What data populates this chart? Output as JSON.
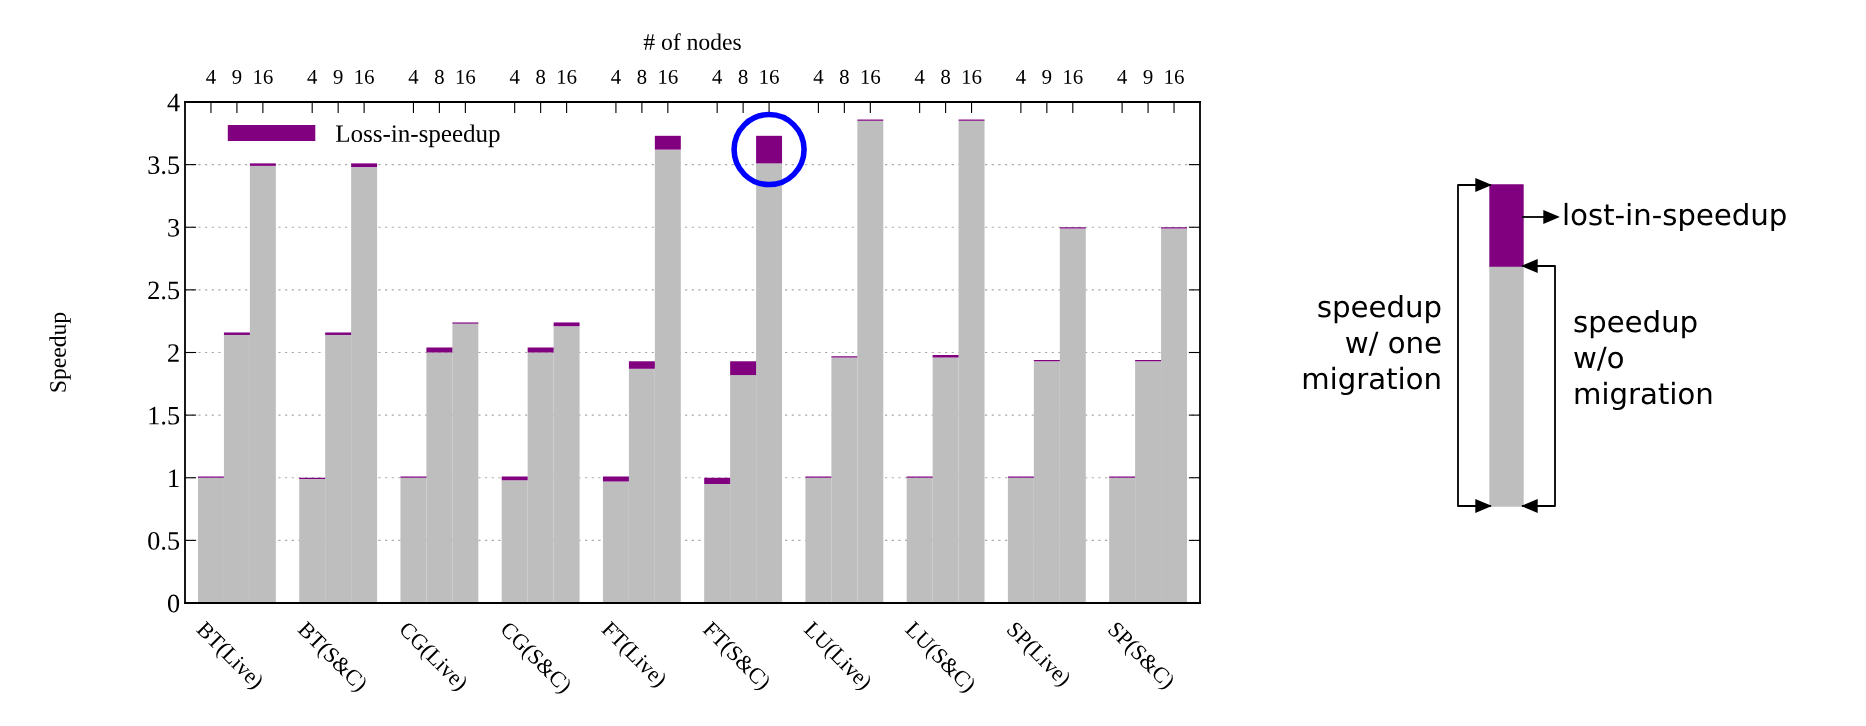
{
  "chart_data": {
    "type": "bar",
    "stacked": true,
    "xlabel": "# of nodes",
    "ylabel": "Speedup",
    "categories": [
      "4",
      "9",
      "16",
      "4",
      "9",
      "16",
      "4",
      "8",
      "16",
      "4",
      "8",
      "16",
      "4",
      "8",
      "16",
      "4",
      "8",
      "16",
      "4",
      "8",
      "16",
      "4",
      "8",
      "16",
      "4",
      "9",
      "16",
      "4",
      "9",
      "16"
    ],
    "series": [
      {
        "color": "#bebebe",
        "values": [
          1.0,
          2.14,
          3.49,
          0.99,
          2.14,
          3.48,
          1.0,
          2.0,
          2.23,
          0.98,
          2.0,
          2.21,
          0.97,
          1.87,
          3.62,
          0.95,
          1.82,
          3.51,
          1.0,
          1.96,
          3.85,
          1.0,
          1.96,
          3.85,
          1.0,
          1.93,
          2.99,
          1.0,
          1.93,
          2.99
        ]
      },
      {
        "name": "Loss-in-speedup",
        "color": "#800080",
        "values": [
          0.01,
          0.02,
          0.02,
          0.01,
          0.02,
          0.03,
          0.01,
          0.04,
          0.01,
          0.03,
          0.04,
          0.03,
          0.04,
          0.06,
          0.11,
          0.05,
          0.11,
          0.22,
          0.01,
          0.01,
          0.01,
          0.01,
          0.02,
          0.01,
          0.01,
          0.01,
          0.01,
          0.01,
          0.01,
          0.01
        ]
      }
    ],
    "ylim": [
      0,
      4
    ],
    "yticks": [
      0,
      0.5,
      1,
      1.5,
      2,
      2.5,
      3,
      3.5,
      4
    ],
    "grid": "y",
    "legend": "top left",
    "annotations": [
      "BT(Live)",
      "BT(S&C)",
      "CG(Live)",
      "CG(S&C)",
      "FT(Live)",
      "FT(S&C)",
      "LU(Live)",
      "LU(S&C)",
      "SP(Live)",
      "SP(S&C)",
      "lost-in-speedup",
      "speedup\nw/ one\nmigration",
      "speedup\nw/o\nmigration"
    ]
  }
}
